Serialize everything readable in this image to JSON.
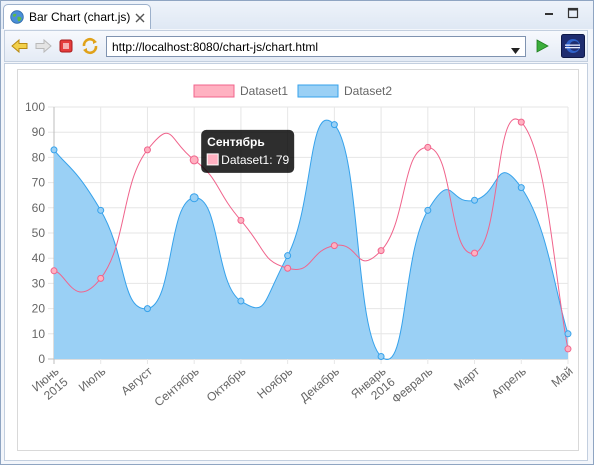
{
  "tab": {
    "title": "Bar Chart (chart.js)",
    "icon": "globe-icon"
  },
  "navbar": {
    "url": "http://localhost:8080/chart-js/chart.html"
  },
  "colors": {
    "dataset1_line": "#f0648c",
    "dataset1_fill": "#ffb1c1",
    "dataset2_line": "#36a2eb",
    "dataset2_fill": "#9ad0f5"
  },
  "chart_data": {
    "type": "area",
    "categories": [
      [
        "Июнь",
        "2015"
      ],
      [
        "Июль"
      ],
      [
        "Август"
      ],
      [
        "Сентябрь"
      ],
      [
        "Октябрь"
      ],
      [
        "Ноябрь"
      ],
      [
        "Декабрь"
      ],
      [
        "Январь",
        "2016"
      ],
      [
        "Февраль"
      ],
      [
        "Март"
      ],
      [
        "Апрель"
      ],
      [
        "Май"
      ]
    ],
    "series": [
      {
        "name": "Dataset1",
        "type": "line",
        "values": [
          35,
          32,
          83,
          79,
          55,
          36,
          45,
          43,
          84,
          42,
          94,
          4
        ]
      },
      {
        "name": "Dataset2",
        "type": "area",
        "values": [
          83,
          59,
          20,
          64,
          23,
          41,
          93,
          1,
          59,
          63,
          68,
          10
        ]
      }
    ],
    "ylim": [
      0,
      100
    ],
    "yticks": [
      0,
      10,
      20,
      30,
      40,
      50,
      60,
      70,
      80,
      90,
      100
    ],
    "grid": true,
    "legend": "top",
    "tooltip": {
      "category_index": 3,
      "title": "Сентябрь",
      "line": "Dataset1: 79"
    }
  }
}
